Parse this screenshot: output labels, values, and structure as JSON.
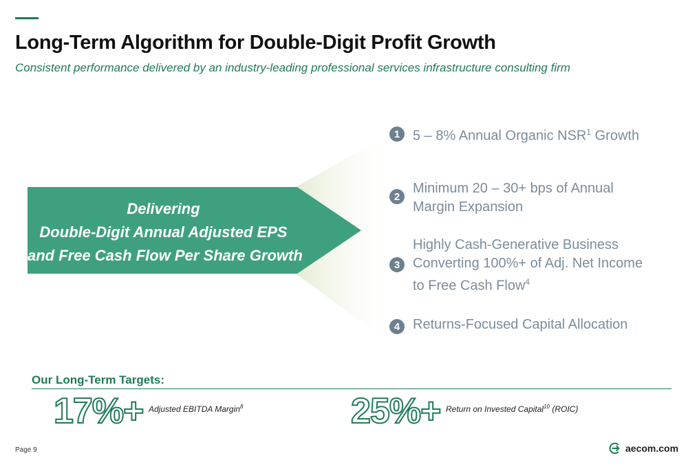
{
  "header": {
    "title": "Long-Term Algorithm for Double-Digit Profit Growth",
    "subtitle": "Consistent performance delivered by an industry-leading professional services infrastructure consulting firm"
  },
  "arrow": {
    "lines": [
      "Delivering",
      "Double-Digit Annual Adjusted EPS",
      "and Free Cash Flow Per Share Growth"
    ]
  },
  "steps": [
    {
      "num": "1",
      "text": "5 – 8% Annual Organic NSR",
      "sup": "1",
      "tail": " Growth"
    },
    {
      "num": "2",
      "text": "Minimum 20 – 30+ bps of Annual Margin Expansion"
    },
    {
      "num": "3",
      "text": "Highly Cash-Generative Business Converting 100%+ of Adj. Net Income to Free Cash Flow",
      "sup": "4"
    },
    {
      "num": "4",
      "text": "Returns-Focused Capital Allocation"
    }
  ],
  "targets": {
    "label": "Our Long-Term Targets:",
    "items": [
      {
        "value": "17%+",
        "label": "Adjusted EBITDA Margin",
        "sup": "8",
        "tail": ""
      },
      {
        "value": "25%+",
        "label": "Return on Invested Capital",
        "sup": "10",
        "tail": " (ROIC)"
      }
    ]
  },
  "footer": {
    "page": "Page 9",
    "logo_text": "aecom.com"
  },
  "colors": {
    "accent": "#1e7a55",
    "arrow_fill": "#3fa080",
    "badge": "#6e7f8e",
    "step_text": "#7c8c9a"
  },
  "icons": {
    "logo": "aecom-arrow-circle-icon"
  }
}
